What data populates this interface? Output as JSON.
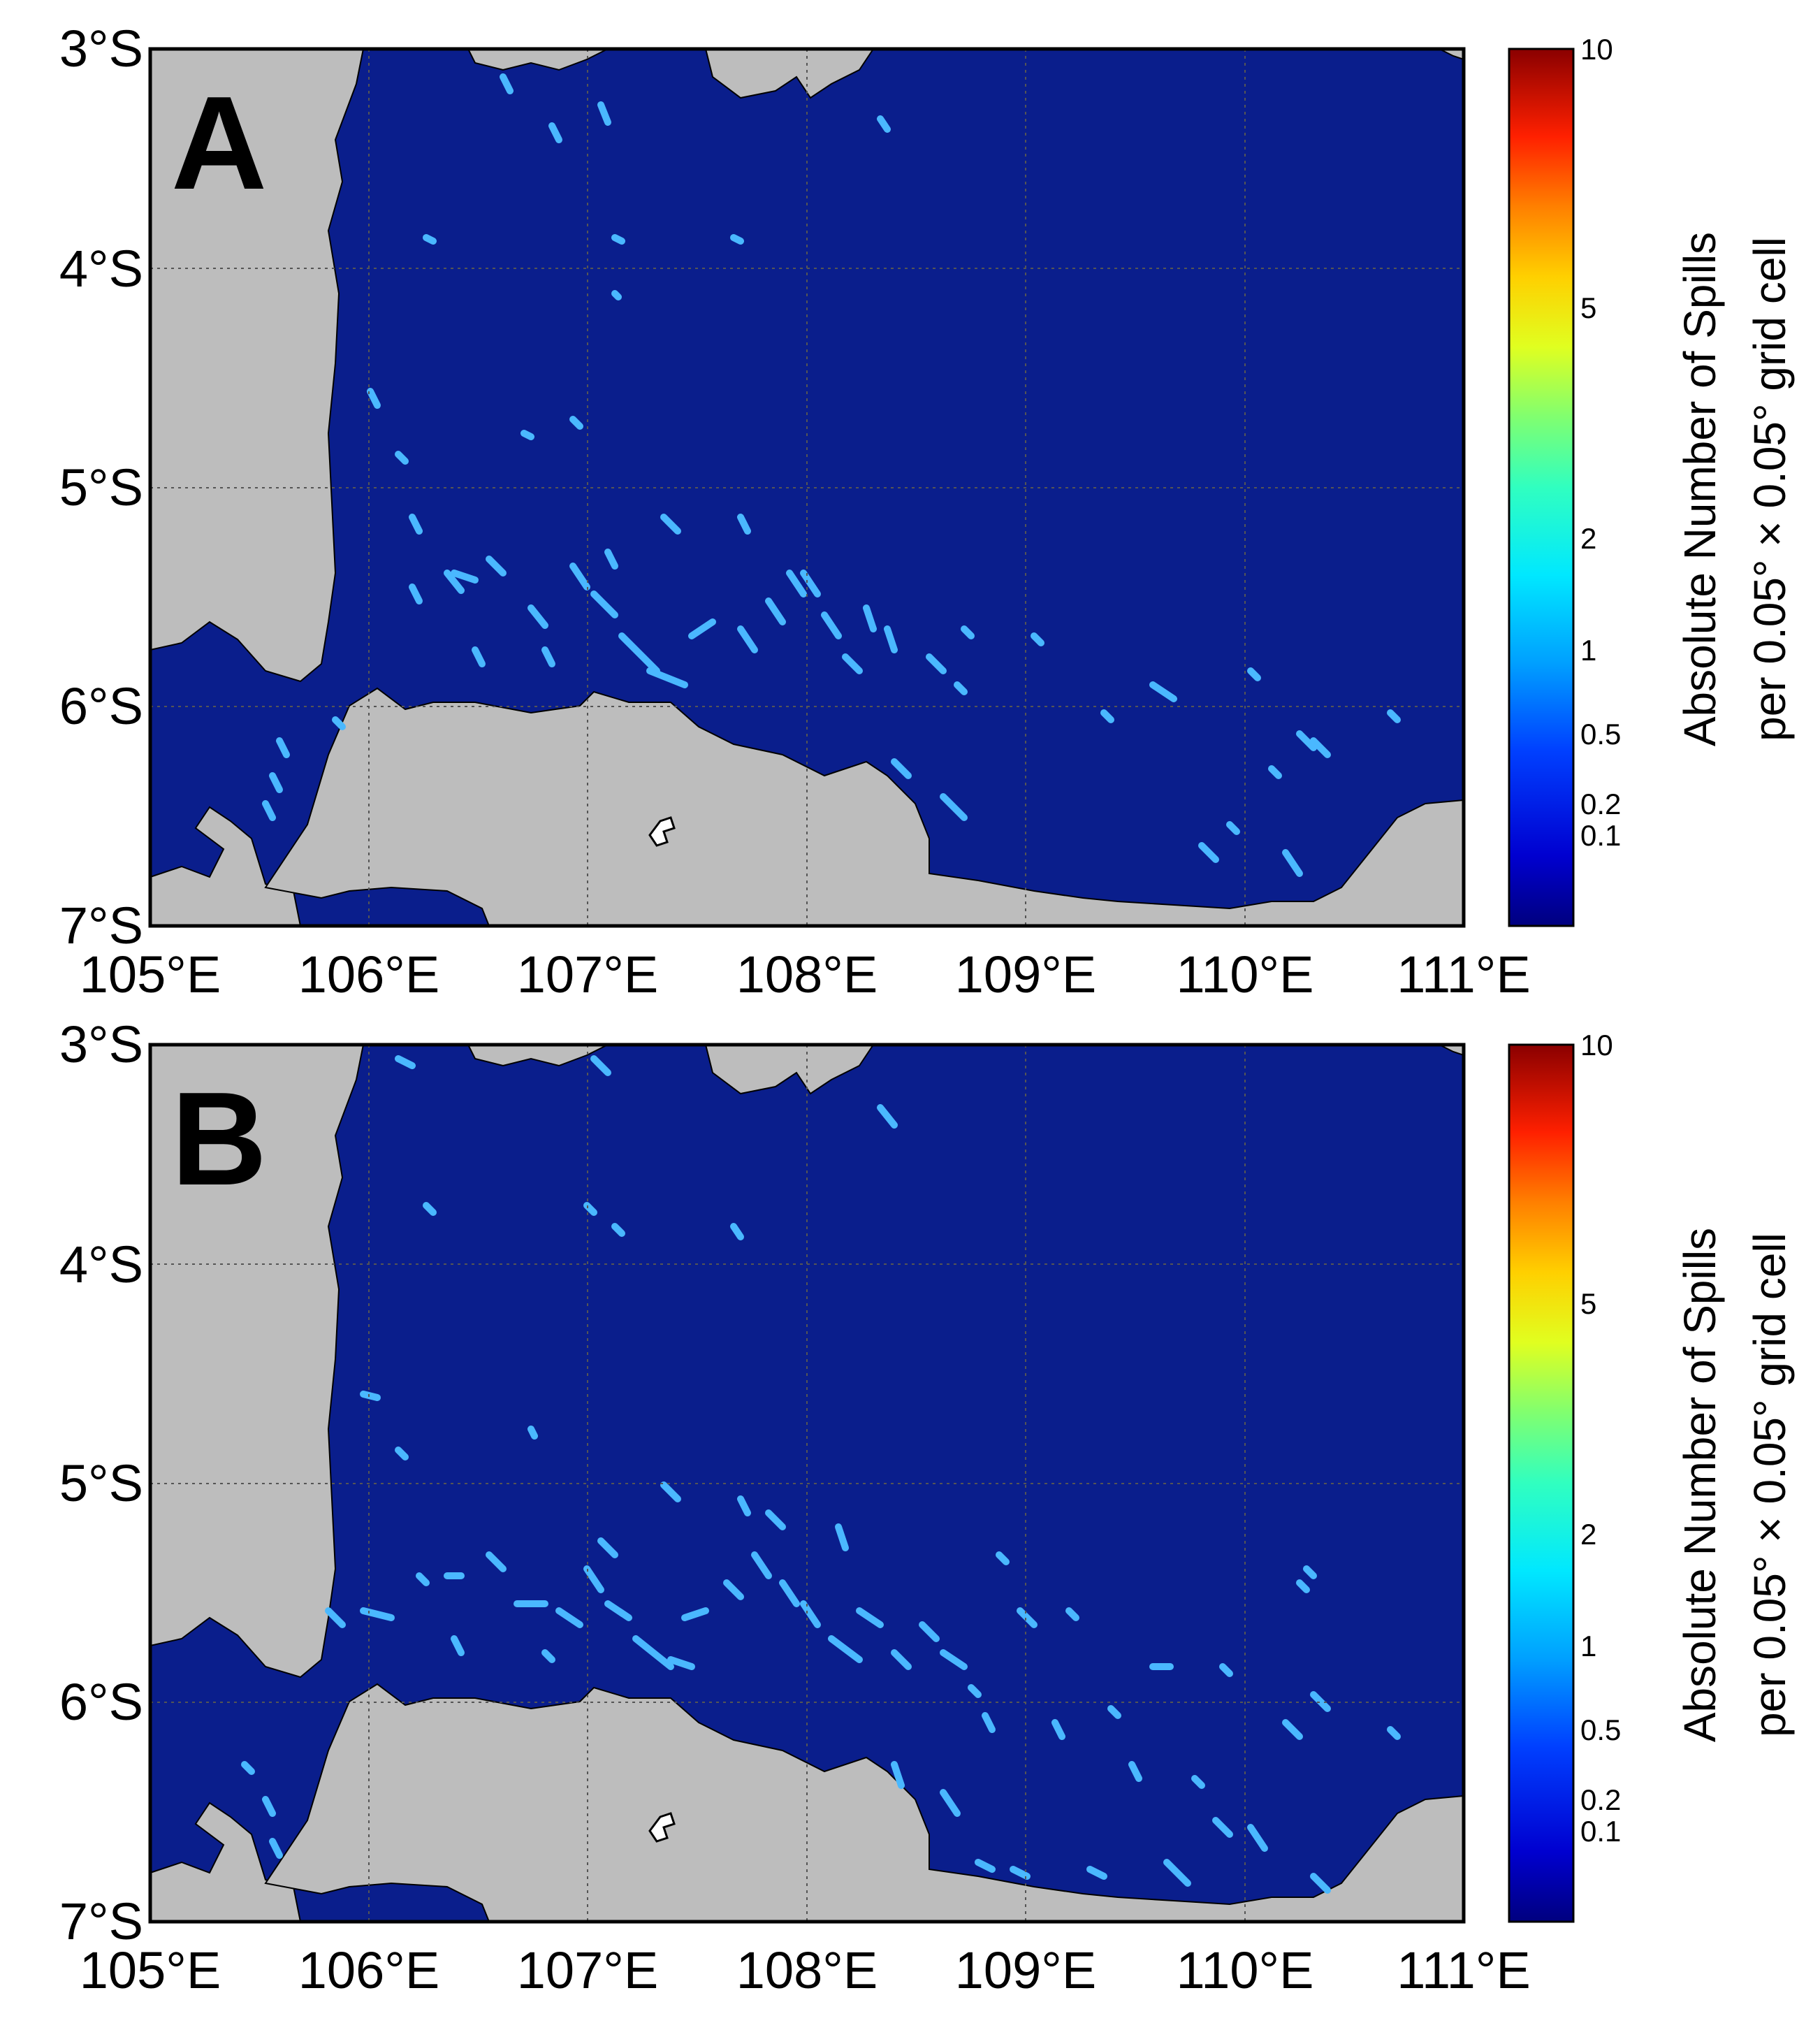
{
  "figure": {
    "panels": [
      {
        "letter": "A",
        "lon_labels": [
          "105°E",
          "106°E",
          "107°E",
          "108°E",
          "109°E",
          "110°E",
          "111°E"
        ],
        "lat_labels": [
          "3°S",
          "4°S",
          "5°S",
          "6°S",
          "7°S"
        ],
        "colorbar": {
          "title_line1": "Absolute Number of Spills",
          "title_line2": "per 0.05° × 0.05° grid cell",
          "ticks": [
            "10",
            "5",
            "2",
            "1",
            "0.5",
            "0.2",
            "0.1"
          ]
        }
      },
      {
        "letter": "B",
        "lon_labels": [
          "105°E",
          "106°E",
          "107°E",
          "108°E",
          "109°E",
          "110°E",
          "111°E"
        ],
        "lat_labels": [
          "3°S",
          "4°S",
          "5°S",
          "6°S",
          "7°S"
        ],
        "colorbar": {
          "title_line1": "Absolute Number of Spills",
          "title_line2": "per 0.05° × 0.05° grid cell",
          "ticks": [
            "10",
            "5",
            "2",
            "1",
            "0.5",
            "0.2",
            "0.1"
          ]
        }
      }
    ]
  },
  "colors": {
    "sea": "#0a1e8c",
    "land": "#bdbdbd",
    "spill": "#4ab8ff",
    "spill_bright": "#7fd8ff",
    "colorbar_stops": [
      "#00007f",
      "#0000ff",
      "#0080ff",
      "#00e0ff",
      "#40ffb0",
      "#b0ff40",
      "#ffe000",
      "#ff8000",
      "#ff0000",
      "#7f0000"
    ]
  },
  "map_extent": {
    "lon": [
      105,
      111
    ],
    "lat": [
      -7,
      -3
    ]
  }
}
